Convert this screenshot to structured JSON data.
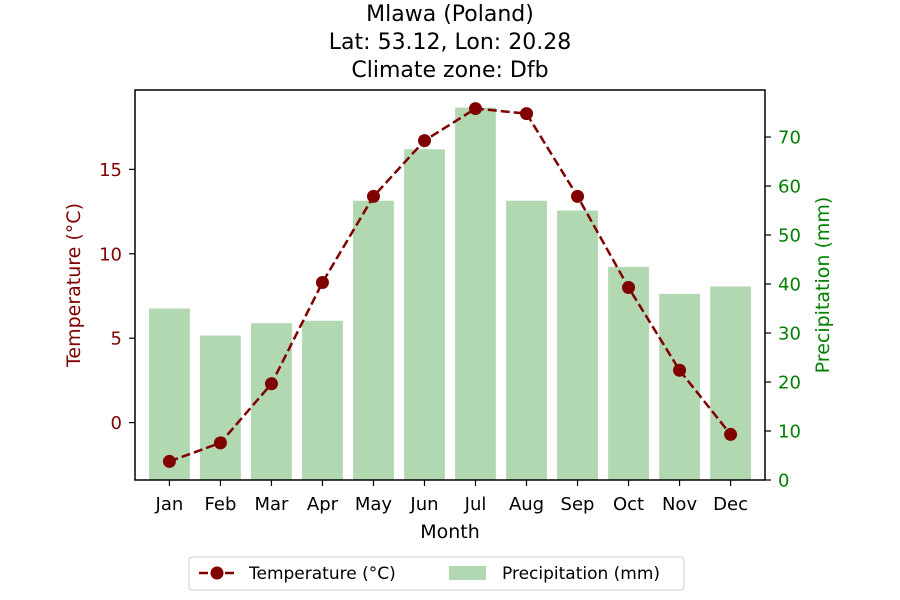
{
  "chart_data": {
    "type": "bar+line",
    "title": [
      "Mlawa (Poland)",
      "Lat: 53.12, Lon: 20.28",
      "Climate zone: Dfb"
    ],
    "xlabel": "Month",
    "categories": [
      "Jan",
      "Feb",
      "Mar",
      "Apr",
      "May",
      "Jun",
      "Jul",
      "Aug",
      "Sep",
      "Oct",
      "Nov",
      "Dec"
    ],
    "series": [
      {
        "name": "Temperature (°C)",
        "type": "line",
        "axis": "left",
        "color": "#800000",
        "style": "dashed with circle markers",
        "values": [
          -2.3,
          -1.2,
          2.3,
          8.3,
          13.4,
          16.7,
          18.6,
          18.3,
          13.4,
          8.0,
          3.1,
          -0.7
        ]
      },
      {
        "name": "Precipitation (mm)",
        "type": "bar",
        "axis": "right",
        "color": "#b2d8b2",
        "values": [
          35,
          29.5,
          32,
          32.5,
          57,
          67.5,
          76,
          57,
          55,
          43.5,
          38,
          39.5
        ]
      }
    ],
    "ylabel_left": "Temperature (°C)",
    "ylabel_left_color": "#800000",
    "ylim_left": [
      -3.4,
      19.7
    ],
    "yticks_left": [
      0,
      5,
      10,
      15
    ],
    "ylabel_right": "Precipitation (mm)",
    "ylabel_right_color": "#008000",
    "ylim_right": [
      0,
      79.6
    ],
    "yticks_right": [
      0,
      10,
      20,
      30,
      40,
      50,
      60,
      70
    ],
    "grid": false,
    "legend": {
      "placement": "bottom-center-outside",
      "entries": [
        "Temperature (°C)",
        "Precipitation (mm)"
      ]
    }
  }
}
